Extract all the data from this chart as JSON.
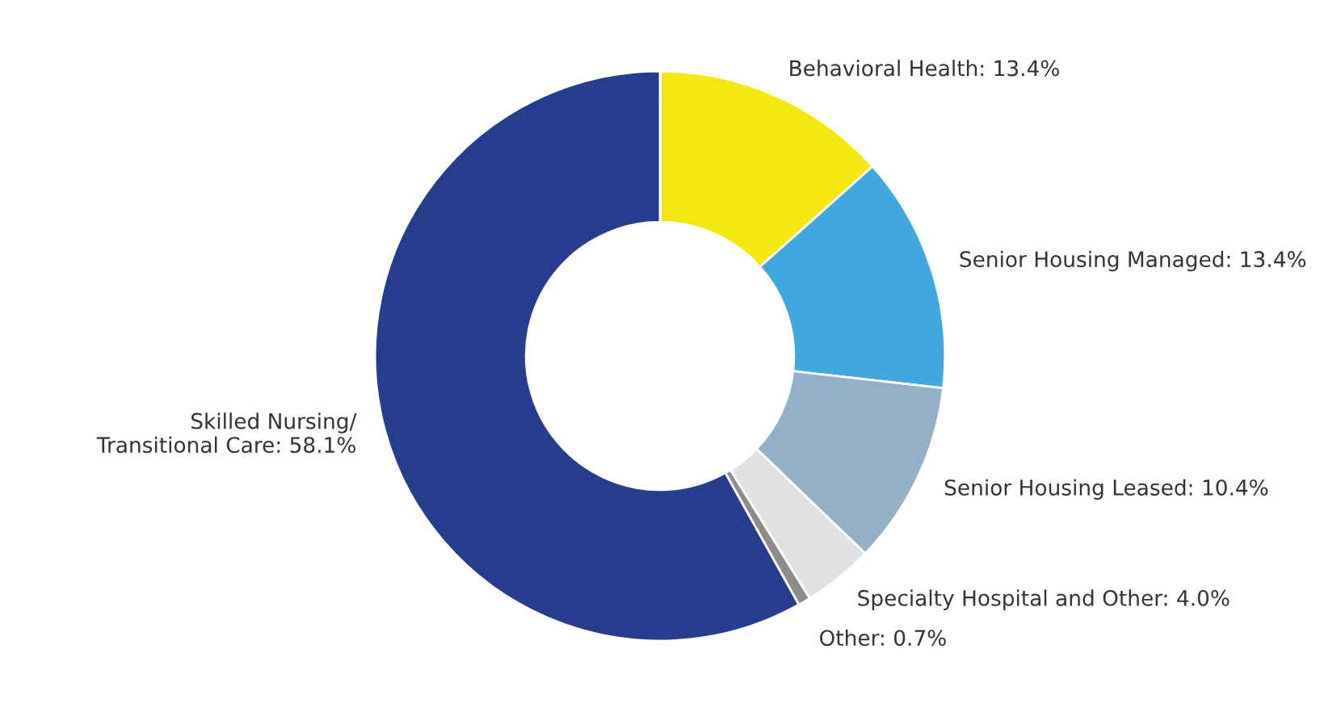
{
  "chart_data": {
    "type": "donut",
    "categories": [
      "Behavioral Health: 13.4%",
      "Senior Housing Managed: 13.4%",
      "Senior Housing Leased: 10.4%",
      "Specialty Hospital and Other: 4.0%",
      "Other: 0.7%",
      "Skilled Nursing/\nTransitional Care: 58.1%"
    ],
    "values": [
      13.4,
      13.4,
      10.4,
      4.0,
      0.7,
      58.1
    ],
    "colors": [
      "#f2e710",
      "#41a8df",
      "#94b0c9",
      "#e0e1e3",
      "#8c8c8c",
      "#253d8c"
    ],
    "legend": false
  }
}
